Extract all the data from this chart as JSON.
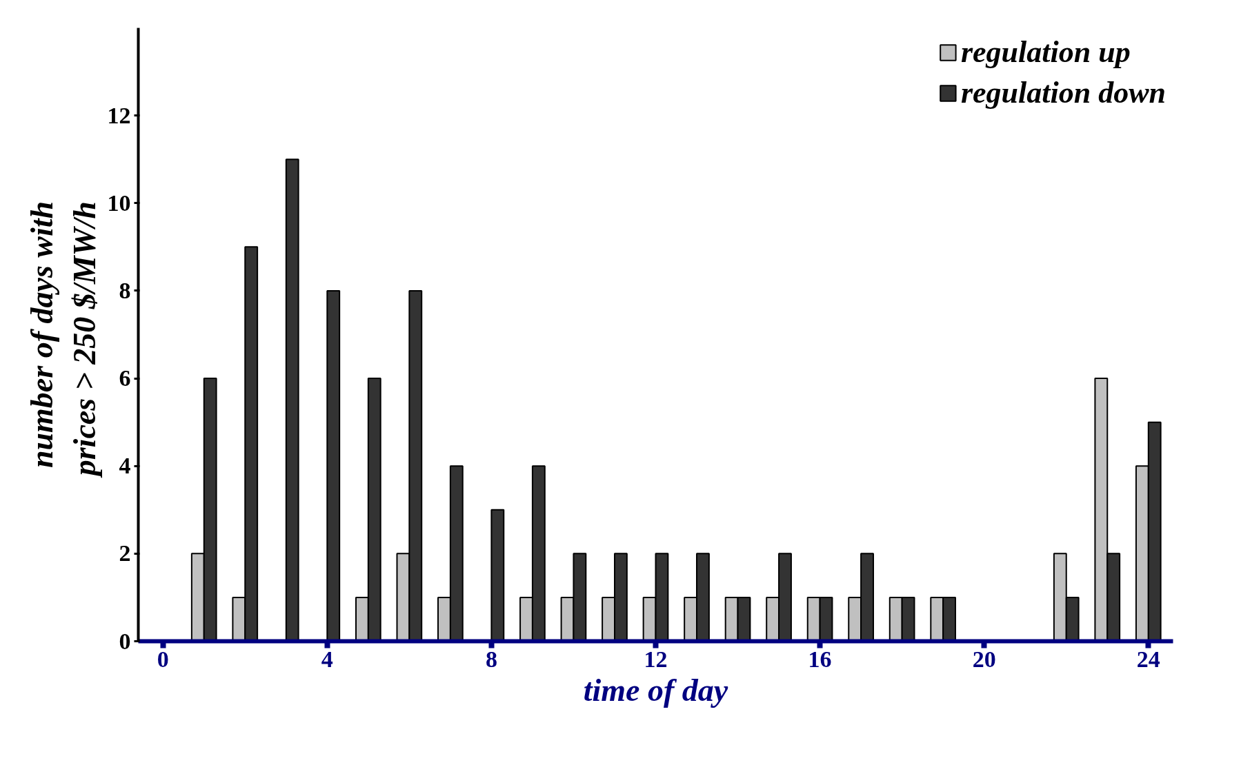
{
  "chart_data": {
    "type": "bar",
    "x": [
      1,
      2,
      3,
      4,
      5,
      6,
      7,
      8,
      9,
      10,
      11,
      12,
      13,
      14,
      15,
      16,
      17,
      18,
      19,
      20,
      21,
      22,
      23,
      24
    ],
    "series": [
      {
        "name": "regulation up",
        "color": "#c0c0c0",
        "values": [
          2,
          1,
          0,
          0,
          1,
          2,
          1,
          0,
          1,
          1,
          1,
          1,
          1,
          1,
          1,
          1,
          1,
          1,
          1,
          0,
          0,
          2,
          6,
          4
        ]
      },
      {
        "name": "regulation down",
        "color": "#333333",
        "values": [
          6,
          9,
          11,
          8,
          6,
          8,
          4,
          3,
          4,
          2,
          2,
          2,
          2,
          1,
          2,
          1,
          2,
          1,
          1,
          0,
          0,
          1,
          2,
          5
        ]
      }
    ],
    "xlabel": "time of day",
    "ylabel": "number of days with\nprices  > 250 $/MW/h",
    "xlim": [
      -0.6,
      24.6
    ],
    "xticks": [
      0,
      4,
      8,
      12,
      16,
      20,
      24
    ],
    "ylim": [
      0,
      14
    ],
    "yticks": [
      0,
      2,
      4,
      6,
      8,
      10,
      12
    ],
    "grid": false,
    "legend": "top right"
  }
}
